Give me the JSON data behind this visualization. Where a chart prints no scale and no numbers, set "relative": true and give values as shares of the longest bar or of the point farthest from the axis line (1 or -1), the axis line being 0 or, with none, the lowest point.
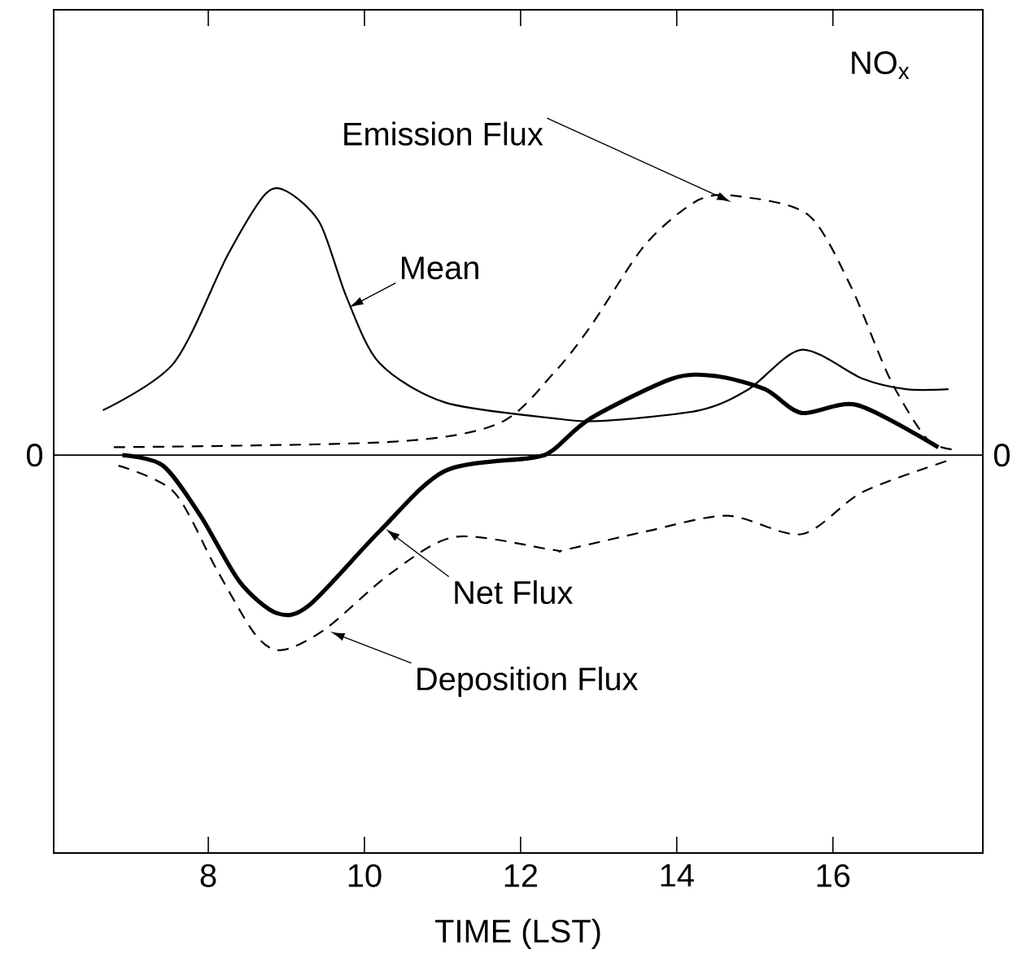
{
  "chart_data": {
    "type": "line",
    "title": "NO$_{x}$",
    "xlabel": "TIME (LST)",
    "relative": true,
    "xlim": [
      6.02,
      17.92
    ],
    "xticks": [
      8,
      10,
      12,
      14,
      16
    ],
    "annotations": [
      "0",
      "0"
    ],
    "series": [
      {
        "name": "Mean",
        "color": "#000000",
        "line_style": "solid",
        "x": [
          6.65,
          7.56,
          8.25,
          8.73,
          9.01,
          9.43,
          9.77,
          10.19,
          11.03,
          12.42,
          13.04,
          14.29,
          14.92,
          15.6,
          16.38,
          16.94,
          17.48
        ],
        "values": [
          0.17,
          0.35,
          0.76,
          0.99,
          1.0,
          0.88,
          0.6,
          0.35,
          0.2,
          0.14,
          0.13,
          0.17,
          0.25,
          0.4,
          0.29,
          0.25,
          0.25
        ]
      },
      {
        "name": "Emission Flux",
        "color": "#000000",
        "line_style": "dashed",
        "x": [
          6.79,
          10.33,
          11.72,
          12.42,
          12.9,
          13.6,
          14.29,
          14.85,
          15.69,
          16.23,
          16.73,
          17.21,
          17.58
        ],
        "values": [
          0.03,
          0.05,
          0.12,
          0.31,
          0.49,
          0.8,
          0.97,
          0.98,
          0.91,
          0.64,
          0.29,
          0.06,
          0.02
        ]
      },
      {
        "name": "Net Flux",
        "color": "#000000",
        "line_style": "solid",
        "x": [
          6.9,
          7.42,
          7.9,
          8.4,
          8.88,
          9.29,
          10.19,
          11.03,
          12.15,
          12.42,
          12.9,
          13.94,
          14.5,
          15.13,
          15.6,
          16.31,
          17.35
        ],
        "values": [
          0.0,
          -0.04,
          -0.23,
          -0.48,
          -0.6,
          -0.57,
          -0.29,
          -0.06,
          -0.01,
          0.02,
          0.14,
          0.29,
          0.3,
          0.25,
          0.16,
          0.19,
          0.03
        ]
      },
      {
        "name": "Deposition Flux",
        "color": "#000000",
        "line_style": "dashed",
        "x": [
          6.85,
          7.56,
          8.1,
          8.6,
          8.94,
          9.5,
          10.33,
          11.17,
          12.42,
          12.56,
          13.6,
          14.65,
          15.6,
          16.38,
          17.48
        ],
        "values": [
          -0.04,
          -0.14,
          -0.43,
          -0.68,
          -0.74,
          -0.66,
          -0.45,
          -0.31,
          -0.36,
          -0.36,
          -0.29,
          -0.23,
          -0.3,
          -0.14,
          -0.02
        ]
      }
    ]
  }
}
